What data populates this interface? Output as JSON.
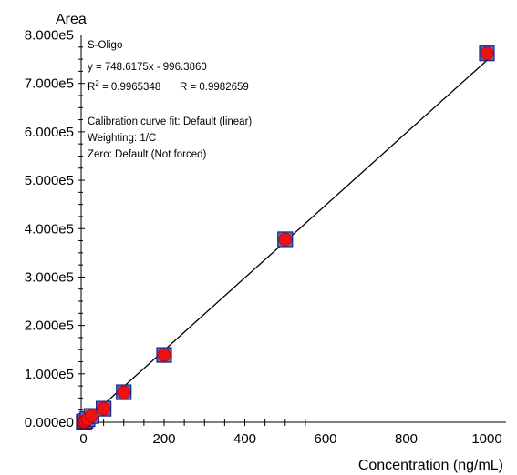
{
  "chart_data": {
    "type": "scatter",
    "title": "",
    "xlabel": "Concentration (ng/mL)",
    "ylabel": "Area",
    "xlim": [
      0,
      1000
    ],
    "ylim": [
      0,
      800000
    ],
    "xticks": [
      0,
      200,
      400,
      600,
      800,
      1000
    ],
    "xtick_labels": [
      "0",
      "200",
      "400",
      "600",
      "800",
      "1000"
    ],
    "yticks": [
      0,
      100000,
      200000,
      300000,
      400000,
      500000,
      600000,
      700000,
      800000
    ],
    "ytick_labels": [
      "0.000e0",
      "1.000e5",
      "2.000e5",
      "3.000e5",
      "4.000e5",
      "5.000e5",
      "6.000e5",
      "7.000e5",
      "8.000e5"
    ],
    "grid": false,
    "legend": "none",
    "colors": {
      "marker_fill": "#ee1111",
      "square_fill": "#5a6fc4",
      "square_edge": "#1a237e",
      "fit_line": "#000000"
    },
    "series": [
      {
        "type": "scatter",
        "points": [
          {
            "x": 1,
            "y": 500
          },
          {
            "x": 2,
            "y": 1200
          },
          {
            "x": 5,
            "y": 3000
          },
          {
            "x": 10,
            "y": 6500
          },
          {
            "x": 20,
            "y": 13000
          },
          {
            "x": 50,
            "y": 28000
          },
          {
            "x": 100,
            "y": 62000
          },
          {
            "x": 200,
            "y": 139000
          },
          {
            "x": 500,
            "y": 378000
          },
          {
            "x": 1000,
            "y": 762000
          }
        ]
      }
    ],
    "fit_line": {
      "slope": 748.6175,
      "intercept": -996.386,
      "x_range": [
        0,
        1000
      ]
    },
    "annotations": {
      "compound": "S-Oligo",
      "equation": "y = 748.6175x - 996.3860",
      "r2_prefix": "R",
      "r2_sup": "2",
      "r2_value": " = 0.9965348",
      "r_text": "R = 0.9982659",
      "fit": "Calibration curve fit: Default (linear)",
      "weighting": "Weighting: 1/C",
      "zero": "Zero: Default (Not forced)"
    }
  }
}
